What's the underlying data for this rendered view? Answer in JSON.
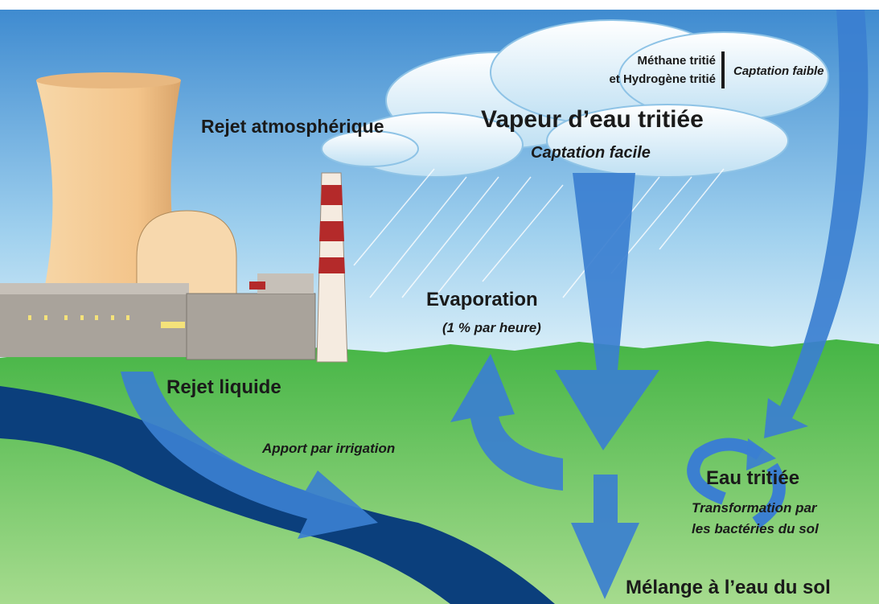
{
  "labels": {
    "methane": "Méthane tritié",
    "hydrogene": "et Hydrogène tritié",
    "captation_faible": "Captation faible",
    "rejet_atmospherique": "Rejet atmosphérique",
    "vapeur": "Vapeur d’eau tritiée",
    "captation_facile": "Captation facile",
    "evaporation": "Evaporation",
    "evaporation_rate": "(1 % par heure)",
    "rejet_liquide": "Rejet liquide",
    "irrigation": "Apport par irrigation",
    "eau_tritiee": "Eau tritiée",
    "transformation_1": "Transformation par",
    "transformation_2": "les bactéries du sol",
    "melange": "Mélange à l’eau du sol"
  }
}
